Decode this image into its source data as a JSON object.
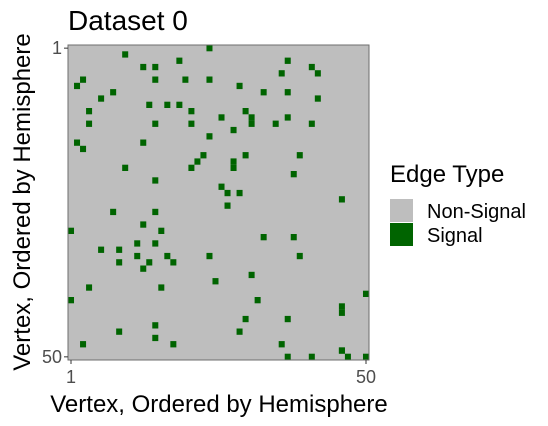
{
  "chart_data": {
    "type": "heatmap",
    "title": "Dataset 0",
    "xlabel": "Vertex, Ordered by Hemisphere",
    "ylabel": "Vertex, Ordered by Hemisphere",
    "n": 50,
    "x_ticks": [
      "1",
      "50"
    ],
    "y_ticks": [
      "1",
      "50"
    ],
    "legend": {
      "title": "Edge Type",
      "placement": "right",
      "entries": [
        {
          "label": "Non-Signal",
          "color": "#bebebe"
        },
        {
          "label": "Signal",
          "color": "#006400"
        }
      ]
    },
    "signal_edges": [
      [
        1,
        24
      ],
      [
        2,
        10
      ],
      [
        3,
        19
      ],
      [
        3,
        37
      ],
      [
        4,
        13
      ],
      [
        4,
        15
      ],
      [
        4,
        41
      ],
      [
        5,
        36
      ],
      [
        5,
        42
      ],
      [
        6,
        3
      ],
      [
        6,
        15
      ],
      [
        6,
        20
      ],
      [
        6,
        24
      ],
      [
        7,
        2
      ],
      [
        7,
        29
      ],
      [
        8,
        8
      ],
      [
        8,
        33
      ],
      [
        8,
        37
      ],
      [
        9,
        6
      ],
      [
        9,
        42
      ],
      [
        10,
        14
      ],
      [
        10,
        17
      ],
      [
        10,
        19
      ],
      [
        11,
        4
      ],
      [
        11,
        21
      ],
      [
        11,
        30
      ],
      [
        12,
        26
      ],
      [
        12,
        31
      ],
      [
        12,
        37
      ],
      [
        13,
        4
      ],
      [
        13,
        15
      ],
      [
        13,
        21
      ],
      [
        13,
        31
      ],
      [
        13,
        35
      ],
      [
        13,
        41
      ],
      [
        14,
        28
      ],
      [
        15,
        24
      ],
      [
        16,
        2
      ],
      [
        16,
        13
      ],
      [
        17,
        3
      ],
      [
        18,
        23
      ],
      [
        18,
        30
      ],
      [
        18,
        39
      ],
      [
        19,
        22
      ],
      [
        19,
        28
      ],
      [
        20,
        10
      ],
      [
        20,
        21
      ],
      [
        20,
        28
      ],
      [
        21,
        38
      ],
      [
        22,
        15
      ],
      [
        23,
        26
      ],
      [
        24,
        27
      ],
      [
        24,
        29
      ],
      [
        25,
        46
      ],
      [
        26,
        27
      ],
      [
        27,
        8
      ],
      [
        27,
        15
      ],
      [
        29,
        13
      ],
      [
        30,
        1
      ],
      [
        30,
        16
      ],
      [
        31,
        33
      ],
      [
        31,
        38
      ],
      [
        32,
        12
      ],
      [
        32,
        15
      ],
      [
        33,
        6
      ],
      [
        33,
        9
      ],
      [
        34,
        12
      ],
      [
        34,
        17
      ],
      [
        34,
        24
      ],
      [
        34,
        39
      ],
      [
        35,
        9
      ],
      [
        35,
        14
      ],
      [
        35,
        18
      ],
      [
        36,
        13
      ],
      [
        37,
        31
      ],
      [
        38,
        25
      ],
      [
        39,
        4
      ],
      [
        39,
        16
      ],
      [
        40,
        50
      ],
      [
        41,
        1
      ],
      [
        41,
        32
      ],
      [
        42,
        46
      ],
      [
        43,
        46
      ],
      [
        44,
        30
      ],
      [
        44,
        37
      ],
      [
        45,
        15
      ],
      [
        46,
        9
      ],
      [
        46,
        29
      ],
      [
        47,
        15
      ],
      [
        48,
        3
      ],
      [
        48,
        18
      ],
      [
        48,
        36
      ],
      [
        49,
        46
      ],
      [
        49,
        46
      ],
      [
        50,
        37
      ],
      [
        50,
        41
      ],
      [
        50,
        47
      ],
      [
        50,
        50
      ]
    ]
  }
}
